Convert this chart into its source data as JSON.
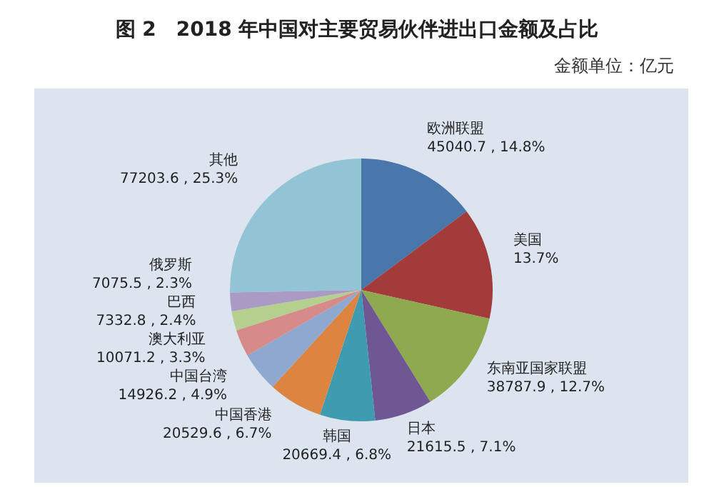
{
  "chart_data": {
    "type": "pie",
    "title": "图 2　2018 年中国对主要贸易伙伴进出口金额及占比",
    "subtitle": "金额单位：亿元",
    "categories": [
      "欧洲联盟",
      "美国",
      "东南亚国家联盟",
      "日本",
      "韩国",
      "中国香港",
      "中国台湾",
      "澳大利亚",
      "巴西",
      "俄罗斯",
      "其他"
    ],
    "values": [
      14.8,
      13.7,
      12.7,
      7.1,
      6.8,
      6.7,
      4.9,
      3.3,
      2.4,
      2.3,
      25.3
    ],
    "value_labels": [
      "45040.7 , 14.8%",
      "13.7%",
      "38787.9 , 12.7%",
      "21615.5 , 7.1%",
      "20669.4 , 6.8%",
      "20529.6 , 6.7%",
      "14926.2 , 4.9%",
      "10071.2 , 3.3%",
      "7332.8 , 2.4%",
      "7075.5 , 2.3%",
      "77203.6 , 25.3%"
    ],
    "colors": [
      "#4a77ab",
      "#a33b3b",
      "#8fa94f",
      "#6f5793",
      "#3e9bb0",
      "#dd8540",
      "#8ea8d0",
      "#d68a8a",
      "#b5cf8e",
      "#a99bc4",
      "#93c4d6"
    ],
    "legend": false
  }
}
